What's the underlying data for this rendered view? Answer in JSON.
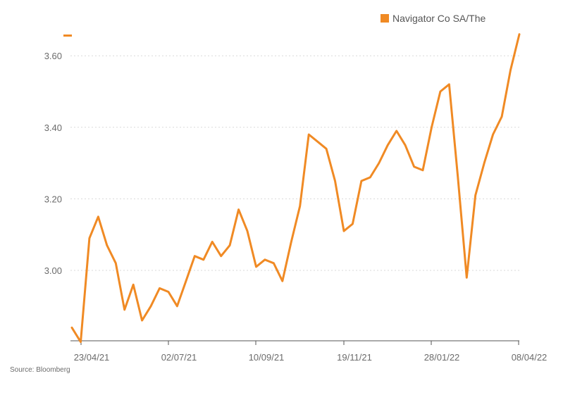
{
  "chart_data": {
    "type": "line",
    "series": [
      {
        "name": "Navigator Co SA/The",
        "color": "#F08A24",
        "values": [
          2.84,
          2.8,
          3.09,
          3.15,
          3.07,
          3.02,
          2.89,
          2.96,
          2.86,
          2.9,
          2.95,
          2.94,
          2.9,
          2.97,
          3.04,
          3.03,
          3.08,
          3.04,
          3.07,
          3.17,
          3.11,
          3.01,
          3.03,
          3.02,
          2.97,
          3.08,
          3.18,
          3.38,
          3.36,
          3.34,
          3.25,
          3.11,
          3.13,
          3.25,
          3.26,
          3.3,
          3.35,
          3.39,
          3.35,
          3.29,
          3.28,
          3.4,
          3.5,
          3.52,
          3.26,
          2.98,
          3.21,
          3.3,
          3.38,
          3.43,
          3.56,
          3.66
        ]
      }
    ],
    "x_tick_labels": [
      "23/04/21",
      "02/07/21",
      "10/09/21",
      "19/11/21",
      "28/01/22",
      "08/04/22"
    ],
    "y_ticks": [
      "3.00",
      "3.20",
      "3.40",
      "3.60"
    ],
    "ylim": [
      2.8,
      3.65
    ],
    "grid": true,
    "legend_position": "top-right",
    "source": "Source: Bloomberg"
  }
}
